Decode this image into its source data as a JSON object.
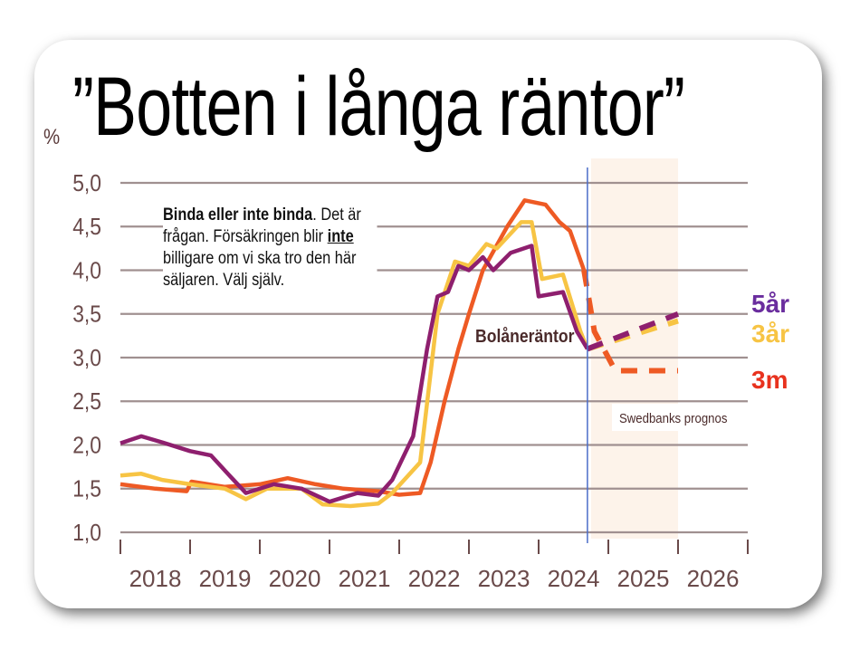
{
  "chart_data": {
    "type": "line",
    "title": "”Botten i långa räntor”",
    "ylabel": "%",
    "ylim": [
      1.0,
      5.0
    ],
    "yticks": [
      "5,0",
      "4,5",
      "4,0",
      "3,5",
      "3,0",
      "2,5",
      "2,0",
      "1,5",
      "1,0"
    ],
    "xlim": [
      2018,
      2027
    ],
    "xticks": [
      "2018",
      "2019",
      "2020",
      "2021",
      "2022",
      "2023",
      "2024",
      "2025",
      "2026"
    ],
    "grid": true,
    "annotation_series_label": "Bolåneräntor",
    "forecast_label": "Swedbanks prognos",
    "forecast_start": 2024.7,
    "note": {
      "bold": "Binda eller inte binda",
      "part1": ". Det är frågan. Försäkringen blir ",
      "underlined": "inte",
      "part2": " billigare om vi ska tro den här säljaren. Välj själv."
    },
    "series": [
      {
        "name": "3m",
        "color": "#ee5a24",
        "x": [
          2018,
          2018.5,
          2018.95,
          2019.02,
          2019.5,
          2020,
          2020.4,
          2020.8,
          2021.2,
          2021.7,
          2022.0,
          2022.3,
          2022.45,
          2022.65,
          2022.85,
          2023.0,
          2023.2,
          2023.55,
          2023.8,
          2024.1,
          2024.3,
          2024.45,
          2024.65
        ],
        "y": [
          1.55,
          1.5,
          1.47,
          1.58,
          1.52,
          1.55,
          1.62,
          1.55,
          1.5,
          1.47,
          1.43,
          1.45,
          1.8,
          2.5,
          3.1,
          3.5,
          4.0,
          4.5,
          4.8,
          4.75,
          4.55,
          4.45,
          4.0
        ],
        "forecast_x": [
          2024.65,
          2024.8,
          2025.1,
          2026
        ],
        "forecast_y": [
          4.0,
          3.3,
          2.85,
          2.85
        ]
      },
      {
        "name": "3år",
        "color": "#f7c444",
        "x": [
          2018,
          2018.3,
          2018.6,
          2019,
          2019.5,
          2019.8,
          2020.1,
          2020.6,
          2020.9,
          2021.3,
          2021.7,
          2021.9,
          2022.3,
          2022.55,
          2022.8,
          2023.0,
          2023.25,
          2023.4,
          2023.75,
          2023.9,
          2024.05,
          2024.35,
          2024.6,
          2024.7
        ],
        "y": [
          1.65,
          1.67,
          1.6,
          1.55,
          1.5,
          1.38,
          1.5,
          1.5,
          1.32,
          1.3,
          1.33,
          1.45,
          1.8,
          3.5,
          4.1,
          4.05,
          4.3,
          4.25,
          4.55,
          4.55,
          3.9,
          3.95,
          3.3,
          3.1
        ],
        "forecast_x": [
          2024.7,
          2026
        ],
        "forecast_y": [
          3.1,
          3.42
        ]
      },
      {
        "name": "5år",
        "color": "#8e1f6e",
        "x": [
          2018,
          2018.3,
          2018.6,
          2019,
          2019.3,
          2019.6,
          2019.8,
          2020.2,
          2020.6,
          2021.0,
          2021.4,
          2021.7,
          2021.9,
          2022.2,
          2022.4,
          2022.55,
          2022.7,
          2022.85,
          2023.0,
          2023.2,
          2023.35,
          2023.6,
          2023.9,
          2024.0,
          2024.35,
          2024.55,
          2024.7
        ],
        "y": [
          2.02,
          2.1,
          2.03,
          1.93,
          1.88,
          1.62,
          1.45,
          1.55,
          1.5,
          1.35,
          1.45,
          1.42,
          1.6,
          2.1,
          3.1,
          3.7,
          3.75,
          4.05,
          4.0,
          4.15,
          4.0,
          4.2,
          4.28,
          3.7,
          3.75,
          3.3,
          3.1
        ],
        "forecast_x": [
          2024.7,
          2026
        ],
        "forecast_y": [
          3.1,
          3.5
        ]
      }
    ],
    "forecast_label_colors": {
      "5år": "#6a2d9e",
      "3år": "#f7c444",
      "3m": "#e8321e"
    }
  }
}
